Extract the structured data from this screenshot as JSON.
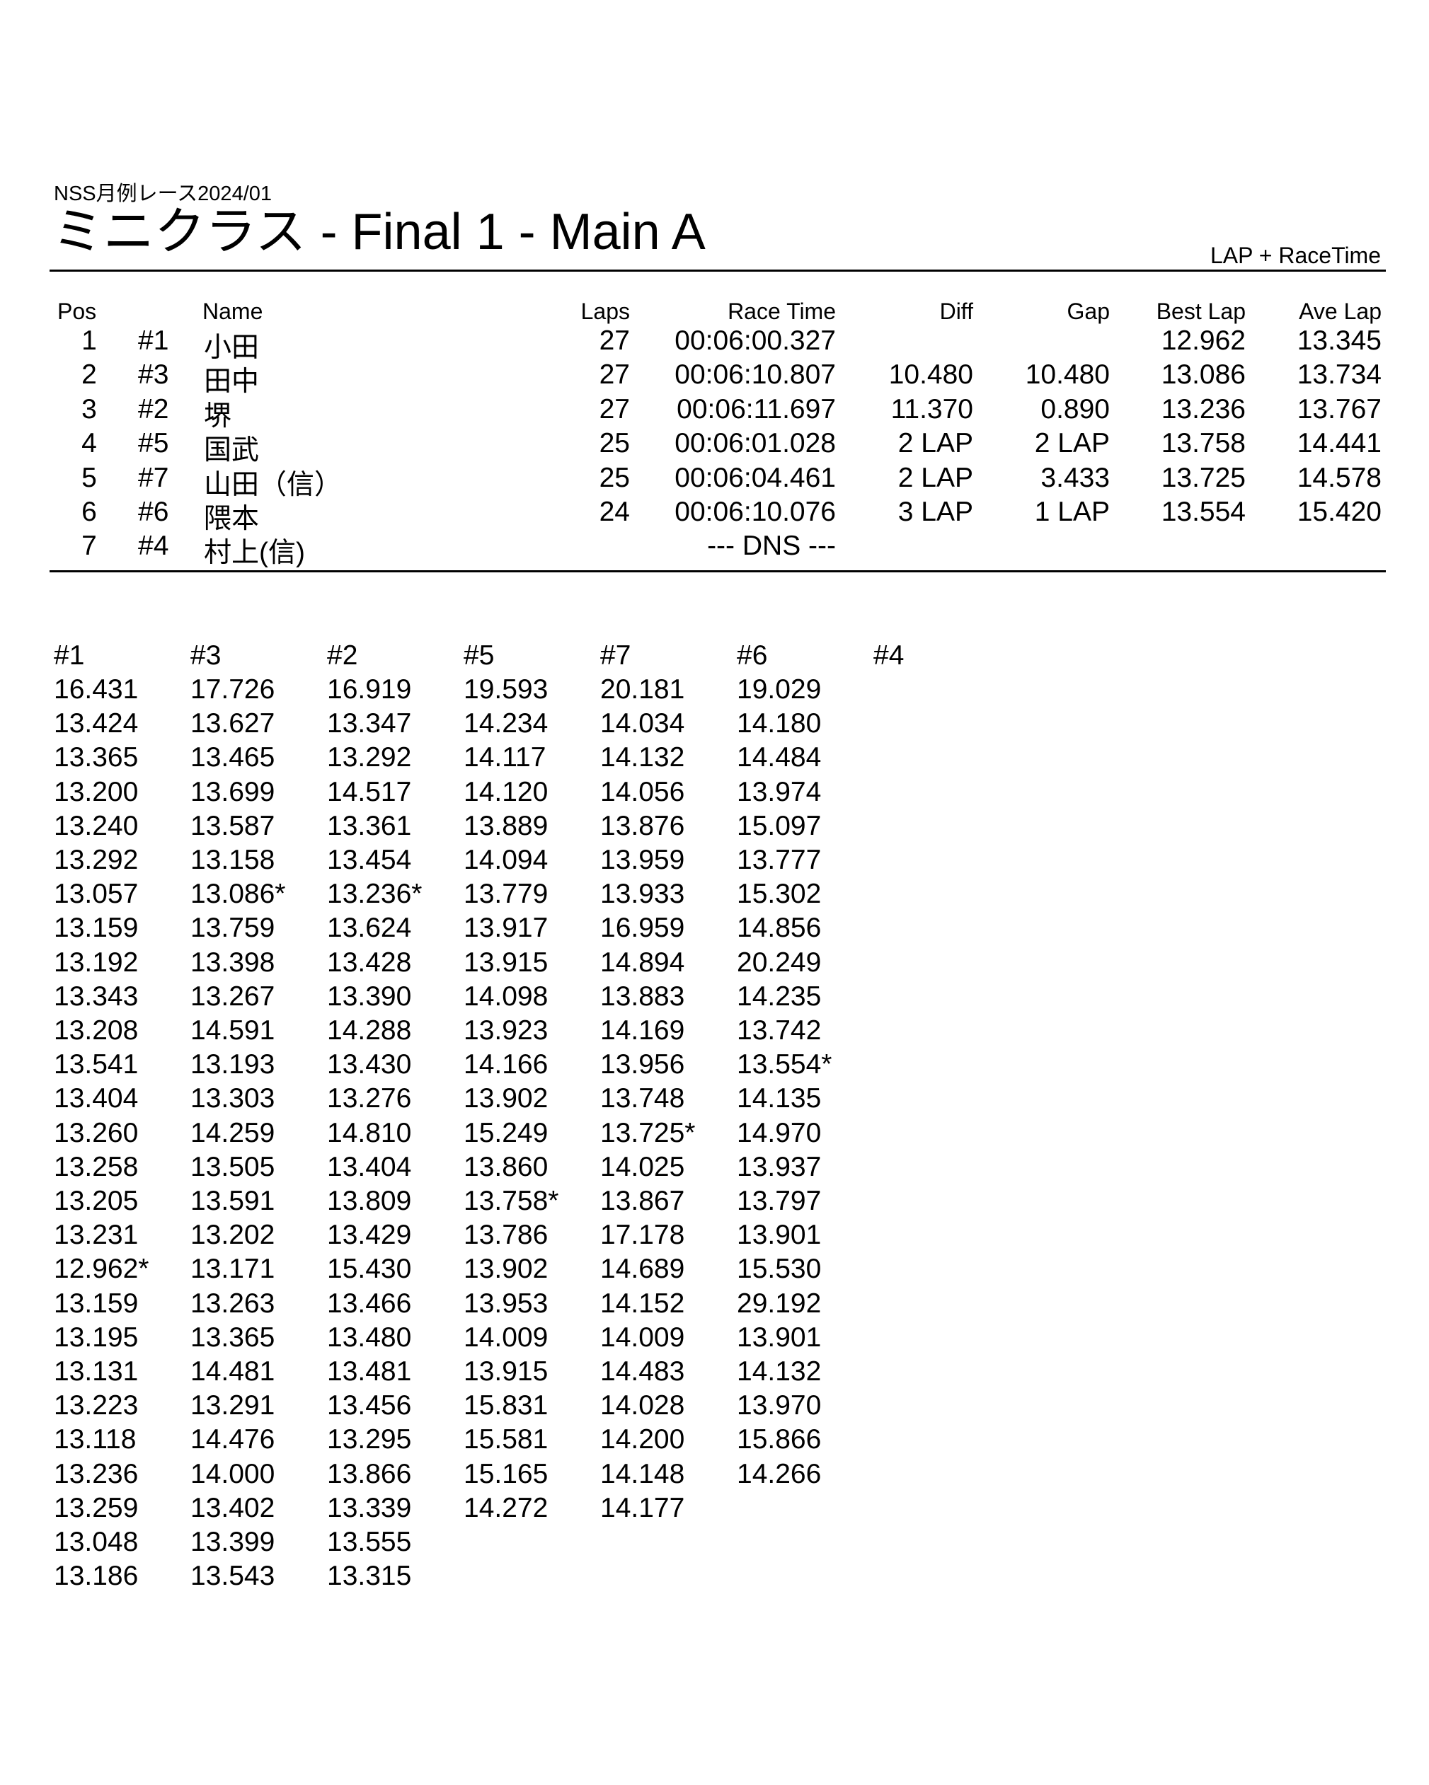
{
  "header": {
    "event": "NSS月例レース2024/01",
    "title": "ミニクラス  -  Final 1  -  Main A",
    "mode": "LAP + RaceTime"
  },
  "results": {
    "columns": {
      "pos": "Pos",
      "name": "Name",
      "laps": "Laps",
      "race_time": "Race Time",
      "diff": "Diff",
      "gap": "Gap",
      "best_lap": "Best Lap",
      "ave_lap": "Ave Lap"
    },
    "rows": [
      {
        "pos": "1",
        "car": "#1",
        "name": "小田",
        "laps": "27",
        "race_time": "00:06:00.327",
        "diff": "",
        "gap": "",
        "best_lap": "12.962",
        "ave_lap": "13.345"
      },
      {
        "pos": "2",
        "car": "#3",
        "name": "田中",
        "laps": "27",
        "race_time": "00:06:10.807",
        "diff": "10.480",
        "gap": "10.480",
        "best_lap": "13.086",
        "ave_lap": "13.734"
      },
      {
        "pos": "3",
        "car": "#2",
        "name": "堺",
        "laps": "27",
        "race_time": "00:06:11.697",
        "diff": "11.370",
        "gap": "0.890",
        "best_lap": "13.236",
        "ave_lap": "13.767"
      },
      {
        "pos": "4",
        "car": "#5",
        "name": "国武",
        "laps": "25",
        "race_time": "00:06:01.028",
        "diff": "2 LAP",
        "gap": "2 LAP",
        "best_lap": "13.758",
        "ave_lap": "14.441"
      },
      {
        "pos": "5",
        "car": "#7",
        "name": "山田（信）",
        "laps": "25",
        "race_time": "00:06:04.461",
        "diff": "2 LAP",
        "gap": "3.433",
        "best_lap": "13.725",
        "ave_lap": "14.578"
      },
      {
        "pos": "6",
        "car": "#6",
        "name": "隈本",
        "laps": "24",
        "race_time": "00:06:10.076",
        "diff": "3 LAP",
        "gap": "1 LAP",
        "best_lap": "13.554",
        "ave_lap": "15.420"
      },
      {
        "pos": "7",
        "car": "#4",
        "name": "村上(信)",
        "laps": "",
        "race_time": "--- DNS ---",
        "diff": "",
        "gap": "",
        "best_lap": "",
        "ave_lap": ""
      }
    ]
  },
  "lap_times": [
    {
      "car": "#1",
      "laps": [
        "16.431",
        "13.424",
        "13.365",
        "13.200",
        "13.240",
        "13.292",
        "13.057",
        "13.159",
        "13.192",
        "13.343",
        "13.208",
        "13.541",
        "13.404",
        "13.260",
        "13.258",
        "13.205",
        "13.231",
        "12.962*",
        "13.159",
        "13.195",
        "13.131",
        "13.223",
        "13.118",
        "13.236",
        "13.259",
        "13.048",
        "13.186"
      ]
    },
    {
      "car": "#3",
      "laps": [
        "17.726",
        "13.627",
        "13.465",
        "13.699",
        "13.587",
        "13.158",
        "13.086*",
        "13.759",
        "13.398",
        "13.267",
        "14.591",
        "13.193",
        "13.303",
        "14.259",
        "13.505",
        "13.591",
        "13.202",
        "13.171",
        "13.263",
        "13.365",
        "14.481",
        "13.291",
        "14.476",
        "14.000",
        "13.402",
        "13.399",
        "13.543"
      ]
    },
    {
      "car": "#2",
      "laps": [
        "16.919",
        "13.347",
        "13.292",
        "14.517",
        "13.361",
        "13.454",
        "13.236*",
        "13.624",
        "13.428",
        "13.390",
        "14.288",
        "13.430",
        "13.276",
        "14.810",
        "13.404",
        "13.809",
        "13.429",
        "15.430",
        "13.466",
        "13.480",
        "13.481",
        "13.456",
        "13.295",
        "13.866",
        "13.339",
        "13.555",
        "13.315"
      ]
    },
    {
      "car": "#5",
      "laps": [
        "19.593",
        "14.234",
        "14.117",
        "14.120",
        "13.889",
        "14.094",
        "13.779",
        "13.917",
        "13.915",
        "14.098",
        "13.923",
        "14.166",
        "13.902",
        "15.249",
        "13.860",
        "13.758*",
        "13.786",
        "13.902",
        "13.953",
        "14.009",
        "13.915",
        "15.831",
        "15.581",
        "15.165",
        "14.272"
      ]
    },
    {
      "car": "#7",
      "laps": [
        "20.181",
        "14.034",
        "14.132",
        "14.056",
        "13.876",
        "13.959",
        "13.933",
        "16.959",
        "14.894",
        "13.883",
        "14.169",
        "13.956",
        "13.748",
        "13.725*",
        "14.025",
        "13.867",
        "17.178",
        "14.689",
        "14.152",
        "14.009",
        "14.483",
        "14.028",
        "14.200",
        "14.148",
        "14.177"
      ]
    },
    {
      "car": "#6",
      "laps": [
        "19.029",
        "14.180",
        "14.484",
        "13.974",
        "15.097",
        "13.777",
        "15.302",
        "14.856",
        "20.249",
        "14.235",
        "13.742",
        "13.554*",
        "14.135",
        "14.970",
        "13.937",
        "13.797",
        "13.901",
        "15.530",
        "29.192",
        "13.901",
        "14.132",
        "13.970",
        "15.866",
        "14.266"
      ]
    },
    {
      "car": "#4",
      "laps": []
    }
  ]
}
